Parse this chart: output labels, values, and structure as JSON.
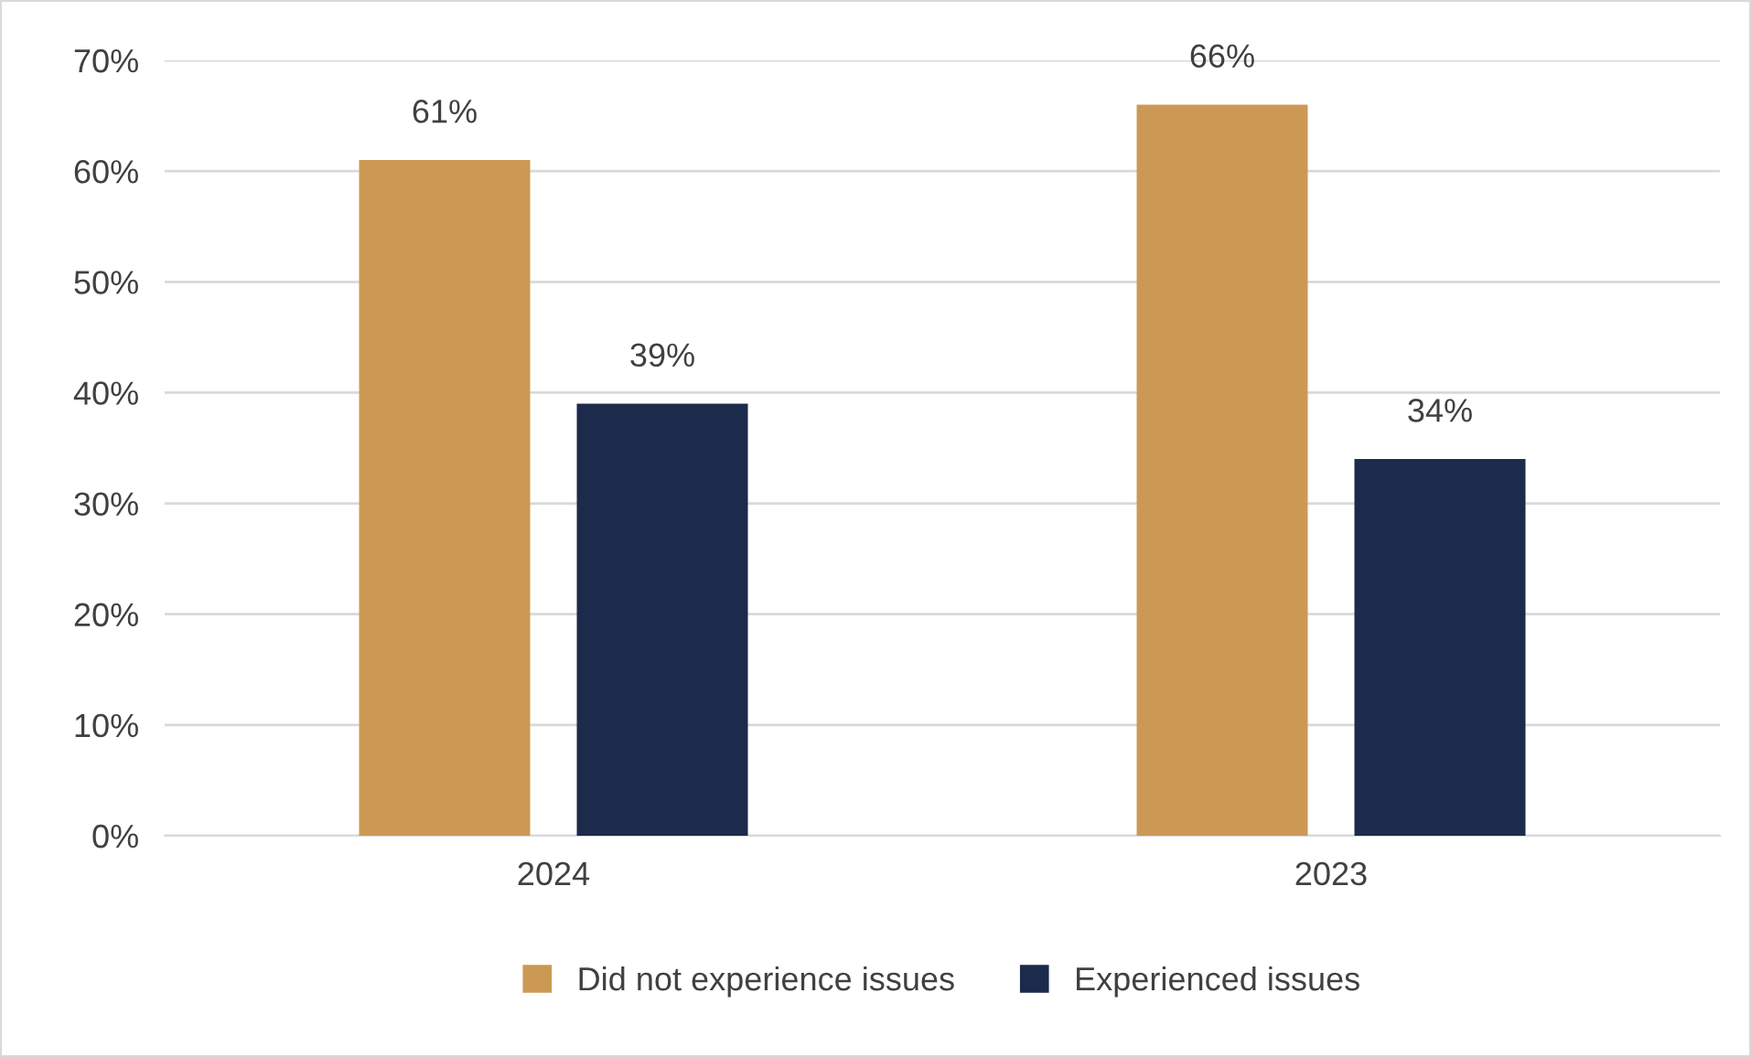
{
  "chart_data": {
    "type": "bar",
    "categories": [
      "2024",
      "2023"
    ],
    "series": [
      {
        "name": "Did not experience issues",
        "color": "#cc9955",
        "values": [
          61,
          66
        ],
        "value_labels": [
          "61%",
          "66%"
        ]
      },
      {
        "name": "Experienced issues",
        "color": "#1c2a4b",
        "values": [
          39,
          34
        ],
        "value_labels": [
          "39%",
          "34%"
        ]
      }
    ],
    "ylim": [
      0,
      70
    ],
    "yticks": [
      {
        "value": 0,
        "label": "0%"
      },
      {
        "value": 10,
        "label": "10%"
      },
      {
        "value": 20,
        "label": "20%"
      },
      {
        "value": 30,
        "label": "30%"
      },
      {
        "value": 40,
        "label": "40%"
      },
      {
        "value": 50,
        "label": "50%"
      },
      {
        "value": 60,
        "label": "60%"
      },
      {
        "value": 70,
        "label": "70%"
      }
    ],
    "grid": "y",
    "legend": "bottom"
  }
}
